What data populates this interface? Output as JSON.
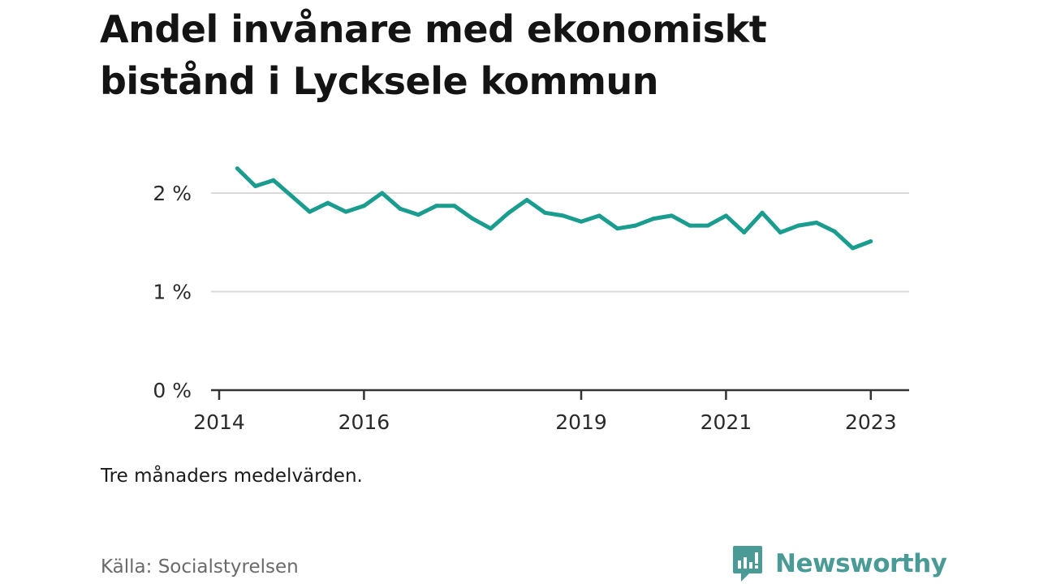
{
  "title": "Andel invånare med ekonomiskt bistånd i Lycksele kommun",
  "note": "Tre månaders medelvärden.",
  "source": "Källa: Socialstyrelsen",
  "brand": {
    "name": "Newsworthy",
    "color": "#4a9b95",
    "icon": "bar-chart-speech-bubble-icon"
  },
  "chart_data": {
    "type": "line",
    "title": "Andel invånare med ekonomiskt bistånd i Lycksele kommun",
    "xlabel": "",
    "ylabel": "",
    "x_ticks": [
      "2014",
      "2016",
      "2019",
      "2021",
      "2023"
    ],
    "y_ticks": [
      "0 %",
      "1 %",
      "2 %"
    ],
    "ylim": [
      0,
      2.4
    ],
    "grid": true,
    "color": "#1a9c8f",
    "series": [
      {
        "x": [
          "2014-04",
          "2014-07",
          "2014-10",
          "2015-01",
          "2015-04",
          "2015-07",
          "2015-10",
          "2016-01",
          "2016-04",
          "2016-07",
          "2016-10",
          "2017-01",
          "2017-04",
          "2017-07",
          "2017-10",
          "2018-01",
          "2018-04",
          "2018-07",
          "2018-10",
          "2019-01",
          "2019-04",
          "2019-07",
          "2019-10",
          "2020-01",
          "2020-04",
          "2020-07",
          "2020-10",
          "2021-01",
          "2021-04",
          "2021-07",
          "2021-10",
          "2022-01",
          "2022-04",
          "2022-07",
          "2022-10",
          "2023-01"
        ],
        "values": [
          2.25,
          2.07,
          2.13,
          1.97,
          1.81,
          1.9,
          1.81,
          1.87,
          2.0,
          1.84,
          1.78,
          1.87,
          1.87,
          1.74,
          1.64,
          1.8,
          1.93,
          1.8,
          1.77,
          1.71,
          1.77,
          1.64,
          1.67,
          1.74,
          1.77,
          1.67,
          1.67,
          1.77,
          1.6,
          1.8,
          1.6,
          1.67,
          1.7,
          1.61,
          1.44,
          1.51
        ]
      }
    ]
  }
}
